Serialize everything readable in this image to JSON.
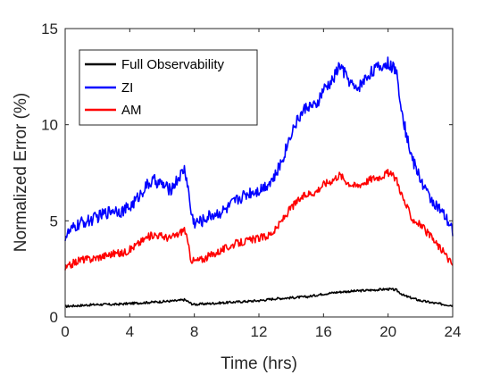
{
  "chart_data": {
    "type": "line",
    "title": "",
    "xlabel": "Time (hrs)",
    "ylabel": "Normalized Error (%)",
    "xlim": [
      0,
      24
    ],
    "ylim": [
      0,
      15
    ],
    "xticks": [
      0,
      4,
      8,
      12,
      16,
      20,
      24
    ],
    "yticks": [
      0,
      5,
      10,
      15
    ],
    "grid": false,
    "legend_position": "top-left",
    "series": [
      {
        "name": "Full Observability",
        "color": "#000000",
        "x": [
          0,
          1,
          2,
          3,
          4,
          5,
          6,
          7,
          7.4,
          7.8,
          8,
          9,
          10,
          11,
          12,
          13,
          14,
          15,
          16,
          17,
          18,
          19,
          20,
          20.5,
          21,
          22,
          23,
          24
        ],
        "y": [
          0.55,
          0.6,
          0.65,
          0.65,
          0.7,
          0.75,
          0.8,
          0.85,
          0.9,
          0.7,
          0.65,
          0.7,
          0.75,
          0.8,
          0.85,
          0.95,
          1.0,
          1.05,
          1.2,
          1.3,
          1.35,
          1.4,
          1.45,
          1.4,
          1.1,
          0.85,
          0.7,
          0.6
        ]
      },
      {
        "name": "ZI",
        "color": "#0000ff",
        "x": [
          0,
          0.5,
          1,
          1.5,
          2,
          2.5,
          3,
          3.5,
          4,
          4.5,
          5,
          5.5,
          6,
          6.5,
          7,
          7.4,
          7.6,
          7.8,
          8,
          8.5,
          9,
          9.5,
          10,
          10.5,
          11,
          11.5,
          12,
          12.5,
          13,
          13.5,
          14,
          14.5,
          15,
          15.5,
          16,
          16.5,
          17,
          17.5,
          18,
          18.5,
          19,
          19.5,
          20,
          20.5,
          21,
          21.5,
          22,
          22.5,
          23,
          23.5,
          24
        ],
        "y": [
          4.2,
          4.6,
          4.9,
          5.0,
          5.2,
          5.4,
          5.6,
          5.5,
          5.7,
          6.2,
          6.8,
          7.1,
          6.9,
          6.6,
          7.2,
          7.7,
          6.8,
          5.4,
          4.9,
          5.0,
          5.3,
          5.4,
          5.6,
          6.0,
          6.3,
          6.5,
          6.6,
          6.9,
          7.3,
          8.3,
          9.6,
          10.4,
          11.0,
          10.9,
          11.8,
          12.2,
          13.1,
          12.4,
          11.8,
          12.3,
          12.8,
          13.0,
          13.2,
          12.8,
          10.0,
          8.2,
          7.2,
          6.3,
          5.8,
          5.2,
          4.5
        ]
      },
      {
        "name": "AM",
        "color": "#ff0000",
        "x": [
          0,
          0.5,
          1,
          1.5,
          2,
          2.5,
          3,
          3.5,
          4,
          4.5,
          5,
          5.5,
          6,
          6.5,
          7,
          7.4,
          7.6,
          7.8,
          8,
          8.5,
          9,
          9.5,
          10,
          10.5,
          11,
          11.5,
          12,
          12.5,
          13,
          13.5,
          14,
          14.5,
          15,
          15.5,
          16,
          16.5,
          17,
          17.5,
          18,
          18.5,
          19,
          19.5,
          20,
          20.5,
          21,
          21.5,
          22,
          22.5,
          23,
          23.5,
          24
        ],
        "y": [
          2.5,
          2.8,
          3.0,
          3.0,
          3.1,
          3.2,
          3.3,
          3.3,
          3.5,
          3.8,
          4.1,
          4.3,
          4.2,
          4.1,
          4.3,
          4.6,
          3.8,
          3.0,
          2.9,
          3.0,
          3.2,
          3.4,
          3.6,
          3.8,
          3.9,
          4.0,
          4.1,
          4.2,
          4.5,
          5.1,
          5.7,
          6.1,
          6.4,
          6.5,
          6.9,
          7.1,
          7.4,
          7.0,
          6.8,
          7.0,
          7.2,
          7.3,
          7.5,
          7.2,
          6.0,
          5.1,
          4.8,
          4.3,
          3.8,
          3.3,
          2.7
        ]
      }
    ]
  }
}
